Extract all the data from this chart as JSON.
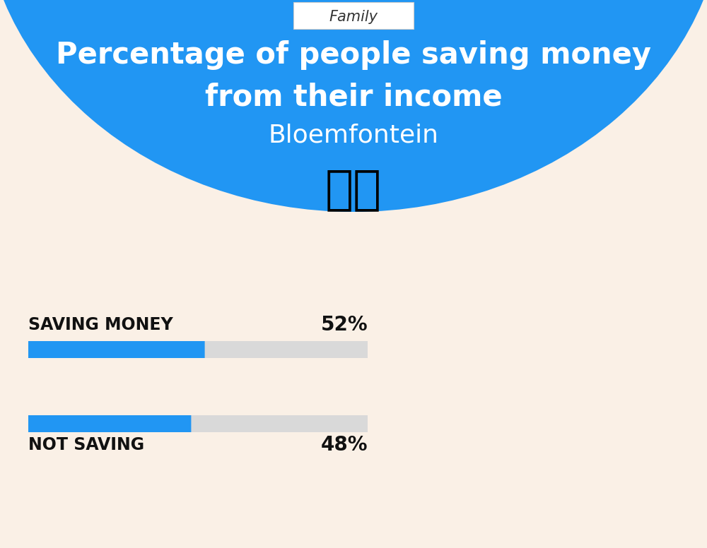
{
  "title_line1": "Percentage of people saving money",
  "title_line2": "from their income",
  "subtitle": "Bloemfontein",
  "category_label": "Family",
  "bar1_label": "SAVING MONEY",
  "bar1_value": 52,
  "bar1_pct": "52%",
  "bar2_label": "NOT SAVING",
  "bar2_value": 48,
  "bar2_pct": "48%",
  "bar_filled_color": "#2196F3",
  "bar_empty_color": "#D9D9D9",
  "background_top": "#2196F3",
  "background_bottom": "#FAF0E6",
  "title_color": "#FFFFFF",
  "subtitle_color": "#FFFFFF",
  "bar_label_color": "#111111",
  "pct_color": "#111111",
  "category_text_color": "#333333",
  "title_fontsize": 30,
  "subtitle_fontsize": 26,
  "bar_label_fontsize": 17,
  "pct_fontsize": 20,
  "category_fontsize": 15,
  "fig_width": 10.0,
  "fig_height": 7.76,
  "dpi": 100
}
